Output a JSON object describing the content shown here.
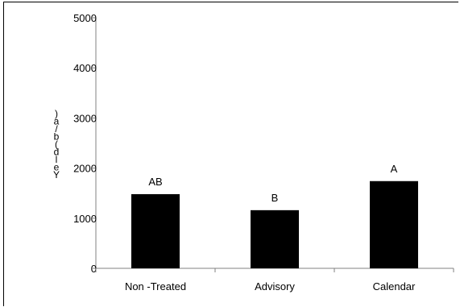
{
  "chart_data": {
    "type": "bar",
    "categories": [
      "Non -Treated",
      "Advisory",
      "Calendar"
    ],
    "values": [
      1480,
      1160,
      1740
    ],
    "data_labels": [
      "AB",
      "B",
      "A"
    ],
    "title": "",
    "xlabel": "",
    "ylabel": ")a/b(dleY",
    "ylim": [
      0,
      5000
    ],
    "yticks": [
      0,
      1000,
      2000,
      3000,
      4000,
      5000
    ],
    "bar_color": "#000000",
    "grid": false,
    "legend": "none"
  }
}
